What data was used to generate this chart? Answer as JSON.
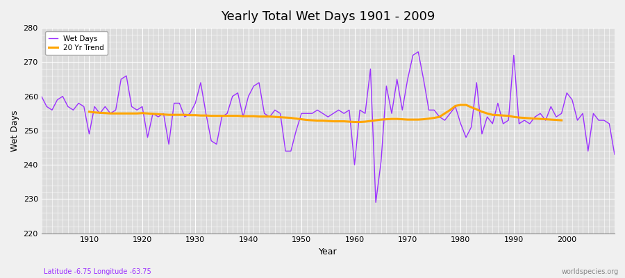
{
  "title": "Yearly Total Wet Days 1901 - 2009",
  "xlabel": "Year",
  "ylabel": "Wet Days",
  "subtitle": "Latitude -6.75 Longitude -63.75",
  "watermark": "worldspecies.org",
  "ylim": [
    220,
    280
  ],
  "yticks": [
    220,
    230,
    240,
    250,
    260,
    270,
    280
  ],
  "xticks": [
    1910,
    1920,
    1930,
    1940,
    1950,
    1960,
    1970,
    1980,
    1990,
    2000
  ],
  "wet_days_color": "#9B30FF",
  "trend_color": "#FFA500",
  "bg_color": "#DCDCDC",
  "fig_bg_color": "#F0F0F0",
  "grid_color": "#FFFFFF",
  "legend_labels": [
    "Wet Days",
    "20 Yr Trend"
  ],
  "years": [
    1901,
    1902,
    1903,
    1904,
    1905,
    1906,
    1907,
    1908,
    1909,
    1910,
    1911,
    1912,
    1913,
    1914,
    1915,
    1916,
    1917,
    1918,
    1919,
    1920,
    1921,
    1922,
    1923,
    1924,
    1925,
    1926,
    1927,
    1928,
    1929,
    1930,
    1931,
    1932,
    1933,
    1934,
    1935,
    1936,
    1937,
    1938,
    1939,
    1940,
    1941,
    1942,
    1943,
    1944,
    1945,
    1946,
    1947,
    1948,
    1949,
    1950,
    1951,
    1952,
    1953,
    1954,
    1955,
    1956,
    1957,
    1958,
    1959,
    1960,
    1961,
    1962,
    1963,
    1964,
    1965,
    1966,
    1967,
    1968,
    1969,
    1970,
    1971,
    1972,
    1973,
    1974,
    1975,
    1976,
    1977,
    1978,
    1979,
    1980,
    1981,
    1982,
    1983,
    1984,
    1985,
    1986,
    1987,
    1988,
    1989,
    1990,
    1991,
    1992,
    1993,
    1994,
    1995,
    1996,
    1997,
    1998,
    1999,
    2000,
    2001,
    2002,
    2003,
    2004,
    2005,
    2006,
    2007,
    2008,
    2009
  ],
  "wet_days": [
    260,
    257,
    256,
    259,
    260,
    257,
    256,
    258,
    257,
    249,
    257,
    255,
    257,
    255,
    256,
    265,
    266,
    257,
    256,
    257,
    248,
    255,
    254,
    255,
    246,
    258,
    258,
    254,
    255,
    258,
    264,
    255,
    247,
    246,
    254,
    255,
    260,
    261,
    254,
    260,
    263,
    264,
    255,
    254,
    256,
    255,
    244,
    244,
    250,
    255,
    255,
    255,
    256,
    255,
    254,
    255,
    256,
    255,
    256,
    240,
    256,
    255,
    268,
    229,
    241,
    263,
    255,
    265,
    256,
    265,
    272,
    273,
    265,
    256,
    256,
    254,
    253,
    255,
    257,
    252,
    248,
    251,
    264,
    249,
    254,
    252,
    258,
    252,
    253,
    272,
    252,
    253,
    252,
    254,
    255,
    253,
    257,
    254,
    255,
    261,
    259,
    253,
    255,
    244,
    255,
    253,
    253,
    252,
    243
  ],
  "trend": [
    null,
    null,
    null,
    null,
    null,
    null,
    null,
    null,
    null,
    255.5,
    255.3,
    255.2,
    255.1,
    255.0,
    255.0,
    255.0,
    255.0,
    255.0,
    255.0,
    255.1,
    255.0,
    254.9,
    254.8,
    254.7,
    254.6,
    254.6,
    254.6,
    254.6,
    254.5,
    254.5,
    254.4,
    254.4,
    254.3,
    254.3,
    254.3,
    254.3,
    254.3,
    254.3,
    254.2,
    254.2,
    254.2,
    254.1,
    254.1,
    254.1,
    254.0,
    253.9,
    253.8,
    253.7,
    253.5,
    253.3,
    253.1,
    253.0,
    252.9,
    252.9,
    252.8,
    252.7,
    252.7,
    252.7,
    252.6,
    252.5,
    252.5,
    252.6,
    252.8,
    253.0,
    253.2,
    253.3,
    253.4,
    253.4,
    253.3,
    253.2,
    253.2,
    253.2,
    253.3,
    253.5,
    253.7,
    254.0,
    255.0,
    256.0,
    257.2,
    257.5,
    257.5,
    256.8,
    256.2,
    255.5,
    255.0,
    254.6,
    254.5,
    254.4,
    254.3,
    254.0,
    253.8,
    253.7,
    253.6,
    253.5,
    253.4,
    253.3,
    253.2,
    253.1,
    253.0
  ]
}
